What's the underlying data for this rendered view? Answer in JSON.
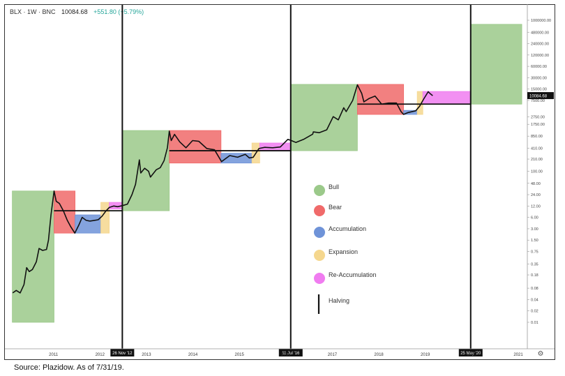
{
  "header": {
    "symbol": "BLX · 1W · BNC",
    "value": "10084.68",
    "change": "+551.80 (+5.79%)"
  },
  "source": "Source:  Plazidow.  As  of  7/31/19.",
  "settings_icon": "gear-icon",
  "colors": {
    "Bull": "#9bc98a",
    "Bear": "#f06a6a",
    "Accumulation": "#6f93d8",
    "Expansion": "#f5d78e",
    "Re-Accumulation": "#f07cf0",
    "line": "#111111"
  },
  "chart_data": {
    "type": "line",
    "title": "",
    "xlabel": "",
    "ylabel": "",
    "y_scale": "log",
    "x_ticks": [
      "2011",
      "2012",
      "2013",
      "2014",
      "2015",
      "2016",
      "2017",
      "2018",
      "2019",
      "2020",
      "2021"
    ],
    "y_ticks": [
      "1000000.00",
      "480000.00",
      "240000.00",
      "120000.00",
      "60000.00",
      "30000.00",
      "15000.00",
      "7500.00",
      "2750.00",
      "1750.00",
      "850.00",
      "410.00",
      "210.00",
      "100.00",
      "48.00",
      "24.00",
      "12.00",
      "6.00",
      "3.00",
      "1.50",
      "0.75",
      "0.35",
      "0.18",
      "0.08",
      "0.04",
      "0.02",
      "0.01"
    ],
    "price_label": "10084.68",
    "halvings": [
      {
        "date": "2012-11-26",
        "label": "26 Nov '12"
      },
      {
        "date": "2016-07-11",
        "label": "11 Jul '16"
      },
      {
        "date": "2020-05-25",
        "label": "25 May '20"
      }
    ],
    "legend": [
      "Bull",
      "Bear",
      "Accumulation",
      "Expansion",
      "Re-Accumulation",
      "Halving"
    ],
    "phases": [
      {
        "phase": "Bull",
        "start": "2010-07-15",
        "end": "2011-06-08",
        "low": 0.01,
        "high": 30
      },
      {
        "phase": "Bear",
        "start": "2011-06-08",
        "end": "2011-11-20",
        "low": 2.3,
        "high": 30
      },
      {
        "phase": "Accumulation",
        "start": "2011-11-20",
        "end": "2012-06-10",
        "low": 2.3,
        "high": 7
      },
      {
        "phase": "Expansion",
        "start": "2012-06-10",
        "end": "2012-08-15",
        "low": 2.3,
        "high": 15
      },
      {
        "phase": "Re-Accumulation",
        "start": "2012-08-15",
        "end": "2012-11-26",
        "low": 10,
        "high": 15
      },
      {
        "phase": "Bull",
        "start": "2012-11-26",
        "end": "2013-11-30",
        "low": 9,
        "high": 1200
      },
      {
        "phase": "Bear",
        "start": "2013-11-30",
        "end": "2015-01-10",
        "low": 165,
        "high": 1200
      },
      {
        "phase": "Accumulation",
        "start": "2015-01-10",
        "end": "2015-09-10",
        "low": 165,
        "high": 300
      },
      {
        "phase": "Expansion",
        "start": "2015-09-10",
        "end": "2015-11-10",
        "low": 165,
        "high": 560
      },
      {
        "phase": "Re-Accumulation",
        "start": "2015-11-10",
        "end": "2016-07-11",
        "low": 350,
        "high": 560
      },
      {
        "phase": "Bull",
        "start": "2016-07-11",
        "end": "2017-12-17",
        "low": 350,
        "high": 20000
      },
      {
        "phase": "Bear",
        "start": "2017-12-17",
        "end": "2018-12-15",
        "low": 3200,
        "high": 20000
      },
      {
        "phase": "Accumulation",
        "start": "2018-12-15",
        "end": "2019-04-01",
        "low": 3200,
        "high": 4100
      },
      {
        "phase": "Expansion",
        "start": "2019-04-01",
        "end": "2019-05-15",
        "low": 3200,
        "high": 13000
      },
      {
        "phase": "Re-Accumulation",
        "start": "2019-05-15",
        "end": "2020-05-25",
        "low": 6000,
        "high": 13000
      },
      {
        "phase": "Bull",
        "start": "2020-05-25",
        "end": "2021-07-01",
        "low": 6000,
        "high": 780000
      }
    ],
    "reference_lines": [
      {
        "start": "2011-06-08",
        "end": "2012-11-26",
        "value": 9
      },
      {
        "start": "2013-11-30",
        "end": "2016-07-11",
        "value": 350
      },
      {
        "start": "2017-12-17",
        "end": "2020-05-25",
        "value": 6000
      }
    ],
    "series": [
      {
        "values": [
          [
            "2010-07-18",
            0.06
          ],
          [
            "2010-08-15",
            0.07
          ],
          [
            "2010-09-15",
            0.06
          ],
          [
            "2010-10-15",
            0.1
          ],
          [
            "2010-11-05",
            0.28
          ],
          [
            "2010-11-25",
            0.22
          ],
          [
            "2010-12-20",
            0.25
          ],
          [
            "2011-01-20",
            0.4
          ],
          [
            "2011-02-10",
            0.9
          ],
          [
            "2011-03-10",
            0.8
          ],
          [
            "2011-04-10",
            0.85
          ],
          [
            "2011-04-25",
            1.5
          ],
          [
            "2011-05-15",
            7
          ],
          [
            "2011-06-08",
            30
          ],
          [
            "2011-06-25",
            16
          ],
          [
            "2011-07-20",
            14
          ],
          [
            "2011-08-20",
            9
          ],
          [
            "2011-09-20",
            5
          ],
          [
            "2011-10-15",
            3.5
          ],
          [
            "2011-11-18",
            2.3
          ],
          [
            "2011-12-20",
            3.8
          ],
          [
            "2012-01-15",
            6
          ],
          [
            "2012-02-15",
            5
          ],
          [
            "2012-03-15",
            4.8
          ],
          [
            "2012-04-20",
            5
          ],
          [
            "2012-05-20",
            5.2
          ],
          [
            "2012-06-20",
            6.5
          ],
          [
            "2012-07-20",
            8.9
          ],
          [
            "2012-08-15",
            11
          ],
          [
            "2012-09-20",
            12
          ],
          [
            "2012-10-20",
            11.5
          ],
          [
            "2012-11-26",
            12.3
          ],
          [
            "2013-01-05",
            13.5
          ],
          [
            "2013-02-10",
            24
          ],
          [
            "2013-03-10",
            45
          ],
          [
            "2013-04-09",
            200
          ],
          [
            "2013-04-20",
            90
          ],
          [
            "2013-05-20",
            120
          ],
          [
            "2013-06-20",
            100
          ],
          [
            "2013-07-05",
            70
          ],
          [
            "2013-08-20",
            110
          ],
          [
            "2013-09-20",
            125
          ],
          [
            "2013-10-20",
            190
          ],
          [
            "2013-11-15",
            420
          ],
          [
            "2013-11-30",
            1150
          ],
          [
            "2013-12-15",
            650
          ],
          [
            "2014-01-10",
            950
          ],
          [
            "2014-02-20",
            600
          ],
          [
            "2014-04-10",
            420
          ],
          [
            "2014-06-01",
            650
          ],
          [
            "2014-07-20",
            620
          ],
          [
            "2014-09-20",
            400
          ],
          [
            "2014-11-20",
            370
          ],
          [
            "2015-01-14",
            180
          ],
          [
            "2015-03-20",
            260
          ],
          [
            "2015-05-20",
            235
          ],
          [
            "2015-07-20",
            280
          ],
          [
            "2015-08-20",
            225
          ],
          [
            "2015-09-20",
            235
          ],
          [
            "2015-11-04",
            400
          ],
          [
            "2015-12-20",
            430
          ],
          [
            "2016-02-20",
            420
          ],
          [
            "2016-04-20",
            440
          ],
          [
            "2016-06-18",
            700
          ],
          [
            "2016-07-11",
            660
          ],
          [
            "2016-08-20",
            580
          ],
          [
            "2016-10-20",
            700
          ],
          [
            "2016-12-31",
            960
          ],
          [
            "2017-01-05",
            1100
          ],
          [
            "2017-02-20",
            1050
          ],
          [
            "2017-04-20",
            1250
          ],
          [
            "2017-06-10",
            2800
          ],
          [
            "2017-07-20",
            2300
          ],
          [
            "2017-09-01",
            4800
          ],
          [
            "2017-09-20",
            3800
          ],
          [
            "2017-11-10",
            7500
          ],
          [
            "2017-12-17",
            19500
          ],
          [
            "2018-01-20",
            11500
          ],
          [
            "2018-02-06",
            6900
          ],
          [
            "2018-03-20",
            8500
          ],
          [
            "2018-05-05",
            9800
          ],
          [
            "2018-06-25",
            6000
          ],
          [
            "2018-08-20",
            6400
          ],
          [
            "2018-10-20",
            6400
          ],
          [
            "2018-11-25",
            3800
          ],
          [
            "2018-12-15",
            3200
          ],
          [
            "2019-01-20",
            3600
          ],
          [
            "2019-03-20",
            4000
          ],
          [
            "2019-04-20",
            5300
          ],
          [
            "2019-05-20",
            8000
          ],
          [
            "2019-06-26",
            12800
          ],
          [
            "2019-07-10",
            11500
          ],
          [
            "2019-07-31",
            10084.68
          ]
        ]
      }
    ]
  }
}
